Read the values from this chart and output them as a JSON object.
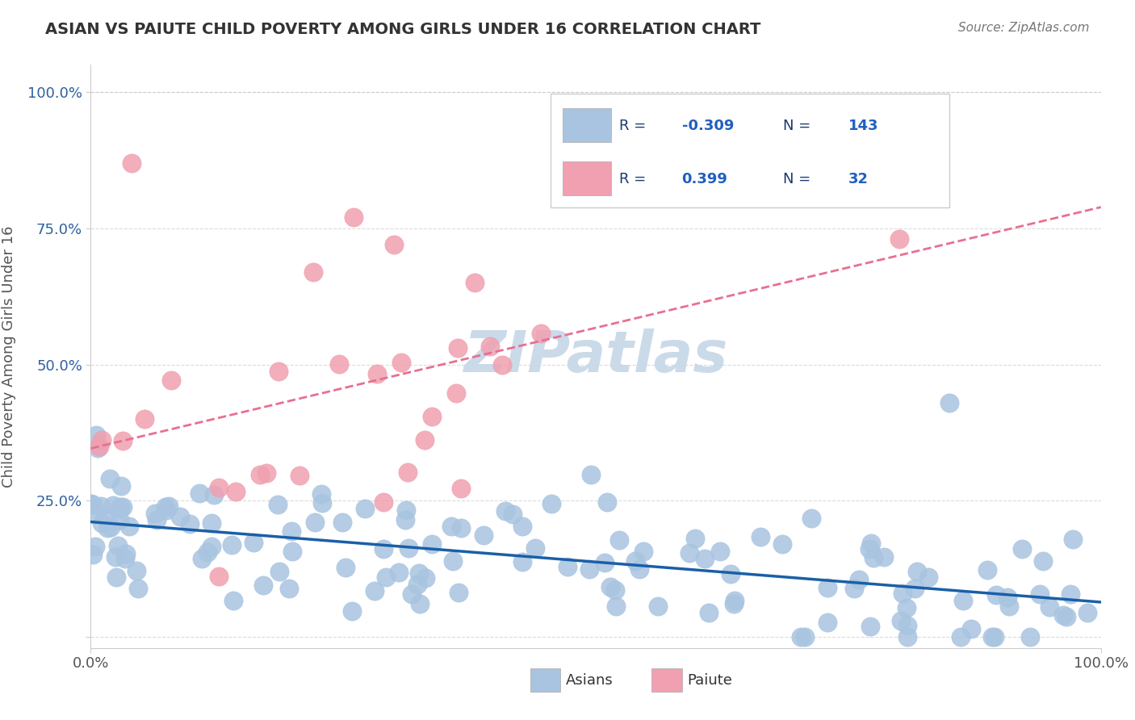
{
  "title": "ASIAN VS PAIUTE CHILD POVERTY AMONG GIRLS UNDER 16 CORRELATION CHART",
  "source": "Source: ZipAtlas.com",
  "ylabel": "Child Poverty Among Girls Under 16",
  "ytick_labels": [
    "",
    "25.0%",
    "50.0%",
    "75.0%",
    "100.0%"
  ],
  "ytick_values": [
    0,
    0.25,
    0.5,
    0.75,
    1.0
  ],
  "asian_color": "#a8c4e0",
  "paiute_color": "#f0a0b0",
  "asian_line_color": "#1a5fa8",
  "paiute_line_color": "#e87090",
  "asian_R": -0.309,
  "asian_N": 143,
  "paiute_R": 0.399,
  "paiute_N": 32,
  "legend_label_color": "#1a3a6e",
  "legend_value_color": "#2060c0",
  "watermark": "ZIPatlas",
  "watermark_color": "#c8d8e8",
  "background_color": "#ffffff"
}
